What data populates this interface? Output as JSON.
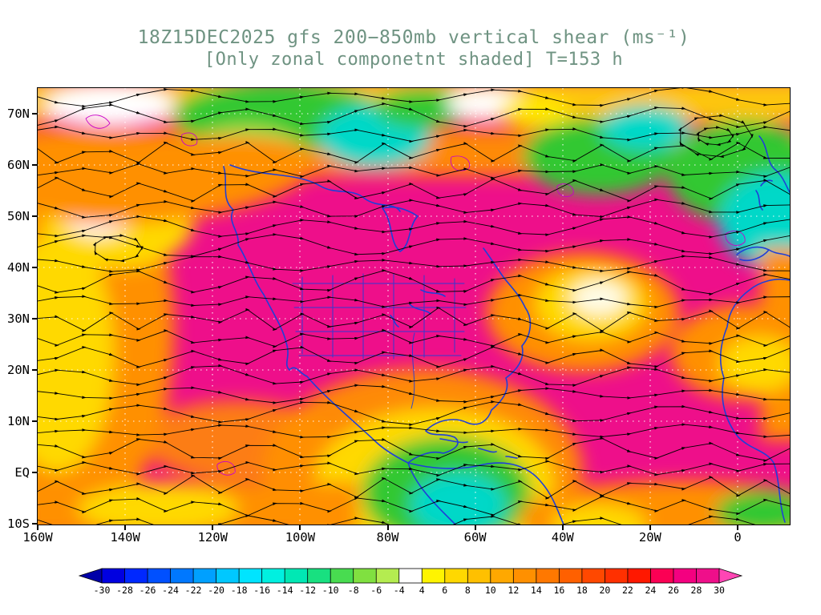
{
  "title": {
    "line1": "18Z15DEC2025 gfs 200−850mb vertical shear (ms⁻¹)",
    "line2": "[Only zonal componetnt shaded] T=153 h"
  },
  "axes": {
    "y_ticks": [
      "70N",
      "60N",
      "50N",
      "40N",
      "30N",
      "20N",
      "10N",
      "EQ",
      "10S"
    ],
    "x_ticks": [
      "160W",
      "140W",
      "120W",
      "100W",
      "80W",
      "60W",
      "40W",
      "20W",
      "0"
    ]
  },
  "colorbar": {
    "labels": [
      "-30",
      "-28",
      "-26",
      "-24",
      "-22",
      "-20",
      "-18",
      "-16",
      "-14",
      "-12",
      "-10",
      "-8",
      "-6",
      "-4",
      "4",
      "6",
      "8",
      "10",
      "12",
      "14",
      "16",
      "18",
      "20",
      "22",
      "24",
      "26",
      "28",
      "30"
    ],
    "colors": [
      "#0000a8",
      "#0000e0",
      "#0028ff",
      "#0050ff",
      "#0078ff",
      "#00a0ff",
      "#00c8ff",
      "#00e4ff",
      "#00f0e0",
      "#00e8b4",
      "#18e080",
      "#48dc50",
      "#80e040",
      "#b4ec50",
      "#ffffff",
      "#fff400",
      "#ffd800",
      "#ffc000",
      "#ffa800",
      "#ff9000",
      "#ff7800",
      "#ff6000",
      "#ff4800",
      "#ff3000",
      "#ff1800",
      "#fb0054",
      "#f40080",
      "#ef0f8a",
      "#ff46b4"
    ]
  },
  "colors": {
    "title_text": "#6f9382",
    "axis_text": "#000000",
    "base_shading": "#ee0f8a",
    "coastline": "#1f3fd8",
    "streamline": "#000000",
    "contour": "#c800c8",
    "graticule": "#ffffff"
  },
  "chart_data": {
    "type": "heatmap",
    "title": "18Z15DEC2025 gfs 200−850mb vertical shear (ms⁻¹)",
    "subtitle": "[Only zonal componetnt shaded] T=153 h",
    "model": "gfs",
    "init_time": "18Z15DEC2025",
    "forecast_hour_label": "T=153 h",
    "variable": "200−850mb vertical wind shear, only zonal component shaded",
    "units": "ms⁻¹",
    "x_axis_ticks": [
      "160W",
      "140W",
      "120W",
      "100W",
      "80W",
      "60W",
      "40W",
      "20W",
      "0"
    ],
    "y_axis_ticks": [
      "70N",
      "60N",
      "50N",
      "40N",
      "30N",
      "20N",
      "10N",
      "EQ",
      "10S"
    ],
    "shading_levels": [
      -30,
      -28,
      -26,
      -24,
      -22,
      -20,
      -18,
      -16,
      -14,
      -12,
      -10,
      -8,
      -6,
      -4,
      4,
      6,
      8,
      10,
      12,
      14,
      16,
      18,
      20,
      22,
      24,
      26,
      28,
      30
    ],
    "legend_position": "bottom",
    "grid": "white dotted graticule every 10 degrees",
    "overlays": [
      "black shear-vector streamlines with arrowheads",
      "blue coastlines and borders",
      "magenta contour squiggles"
    ],
    "dominant_regions": [
      {
        "area": "most of domain 10S-55N",
        "value_range": "24 to 30+ (magenta)"
      },
      {
        "area": "high-latitude band 55N-75N",
        "value_range": "-16 to 14 (greens/cyans/white/yellow/orange)"
      },
      {
        "area": "eastern Pacific near 150W 0-40N",
        "value_range": "6 to 16 (yellow/orange)"
      },
      {
        "area": "central Atlantic near 40W 30N",
        "value_range": "4 to 12 (white/yellow)"
      },
      {
        "area": "eastern equatorial Pacific / NW South America",
        "value_range": "-14 to 8 (cyan/green/yellow)"
      }
    ]
  }
}
